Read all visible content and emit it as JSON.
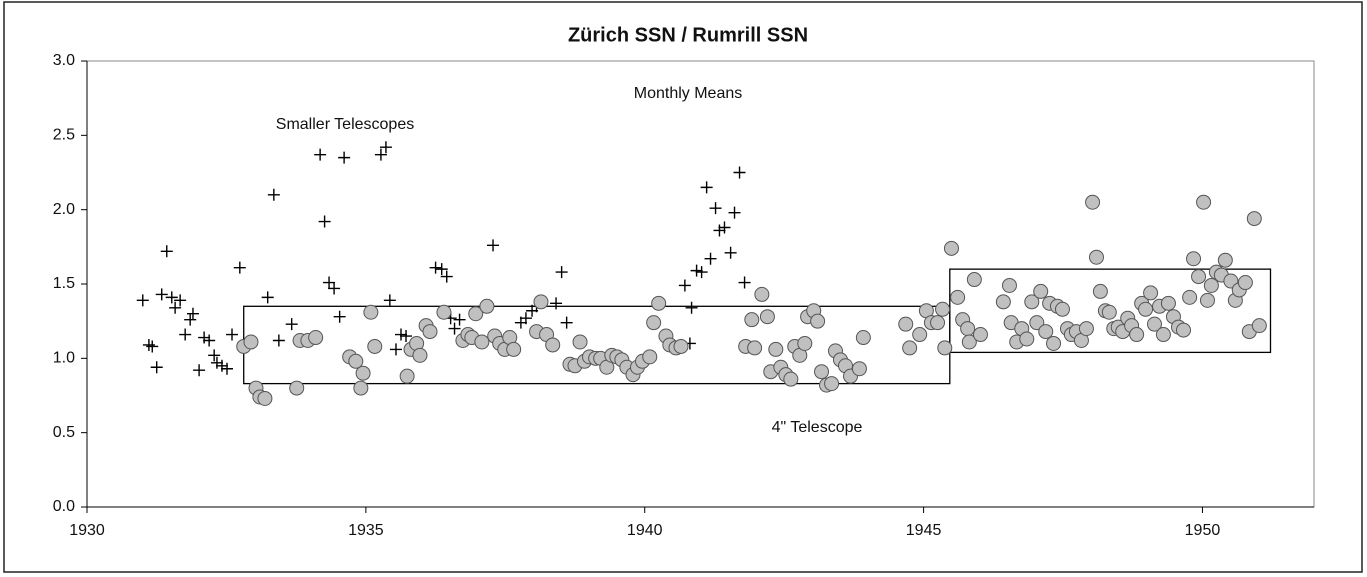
{
  "chart_data": {
    "type": "scatter",
    "title": "Zürich SSN / Rumrill SSN",
    "annotations": [
      "Monthly Means",
      "Smaller Telescopes",
      "4\" Telescope"
    ],
    "xlim": [
      1930,
      1952
    ],
    "xticks": [
      1930,
      1935,
      1940,
      1945,
      1950
    ],
    "ylim": [
      0,
      3
    ],
    "yticks": [
      {
        "value": 0,
        "label": "0.0"
      },
      0.5,
      {
        "value": 1,
        "label": "1.0"
      },
      1.5,
      {
        "value": 2,
        "label": "2.0"
      },
      2.5,
      {
        "value": 3,
        "label": "3.0"
      }
    ],
    "regions": [
      {
        "x": [
          1932.81,
          1945.47
        ],
        "y": [
          0.83,
          1.35
        ]
      },
      {
        "x": [
          1945.47,
          1951.22
        ],
        "y": [
          1.04,
          1.6
        ]
      }
    ],
    "series": [
      {
        "marker": "plus",
        "color": "#000000",
        "x": [
          1931.0,
          1931.11,
          1931.17,
          1931.25,
          1931.34,
          1931.43,
          1931.52,
          1931.58,
          1931.67,
          1931.76,
          1931.85,
          1931.9,
          1932.01,
          1932.1,
          1932.19,
          1932.28,
          1932.33,
          1932.42,
          1932.51,
          1932.6,
          1932.74,
          1933.35,
          1933.24,
          1933.44,
          1933.67,
          1934.18,
          1934.26,
          1934.34,
          1934.43,
          1934.53,
          1934.61,
          1935.27,
          1935.36,
          1935.43,
          1935.54,
          1935.63,
          1935.72,
          1936.25,
          1936.36,
          1936.45,
          1936.52,
          1936.59,
          1936.68,
          1937.28,
          1937.78,
          1937.87,
          1937.98,
          1938.06,
          1938.51,
          1938.6,
          1938.41,
          1940.72,
          1940.81,
          1940.84,
          1940.93,
          1941.02,
          1941.11,
          1941.18,
          1941.27,
          1941.34,
          1941.43,
          1941.54,
          1941.61,
          1941.7,
          1941.79
        ],
        "values": [
          1.39,
          1.09,
          1.08,
          0.94,
          1.43,
          1.72,
          1.41,
          1.34,
          1.39,
          1.16,
          1.26,
          1.3,
          0.92,
          1.14,
          1.12,
          1.02,
          0.97,
          0.95,
          0.93,
          1.16,
          1.61,
          2.1,
          1.41,
          1.12,
          1.23,
          2.37,
          1.92,
          1.51,
          1.47,
          1.28,
          2.35,
          2.37,
          2.42,
          1.39,
          1.06,
          1.16,
          1.15,
          1.61,
          1.6,
          1.55,
          1.27,
          1.2,
          1.26,
          1.76,
          1.24,
          1.27,
          1.32,
          1.35,
          1.58,
          1.24,
          1.37,
          1.49,
          1.1,
          1.34,
          1.59,
          1.58,
          2.15,
          1.67,
          2.01,
          1.86,
          1.88,
          1.71,
          1.98,
          2.25,
          1.51
        ]
      },
      {
        "marker": "circle",
        "color": "#c0c0c0",
        "x": [
          1932.81,
          1932.94,
          1933.03,
          1933.1,
          1933.19,
          1933.76,
          1933.82,
          1933.96,
          1934.1,
          1934.71,
          1934.82,
          1934.95,
          1934.91,
          1935.09,
          1935.16,
          1935.74,
          1935.81,
          1935.91,
          1935.97,
          1936.08,
          1936.15,
          1936.4,
          1936.74,
          1936.83,
          1936.9,
          1936.97,
          1937.08,
          1937.17,
          1937.31,
          1937.4,
          1937.49,
          1937.58,
          1937.65,
          1938.06,
          1938.14,
          1938.24,
          1938.35,
          1938.66,
          1938.75,
          1938.84,
          1938.92,
          1939.01,
          1939.12,
          1939.21,
          1939.32,
          1939.41,
          1939.5,
          1939.59,
          1939.68,
          1939.79,
          1939.87,
          1939.96,
          1940.09,
          1940.16,
          1940.25,
          1940.38,
          1940.45,
          1940.56,
          1940.65,
          1941.81,
          1941.92,
          1941.97,
          1942.1,
          1942.2,
          1942.26,
          1942.35,
          1942.44,
          1942.53,
          1942.62,
          1942.69,
          1942.78,
          1942.87,
          1942.92,
          1943.03,
          1943.1,
          1943.17,
          1943.26,
          1943.35,
          1943.42,
          1943.51,
          1943.6,
          1943.69,
          1943.85,
          1943.92,
          1944.68,
          1944.75,
          1944.93,
          1945.05,
          1945.14,
          1945.25,
          1945.34,
          1945.38,
          1945.5,
          1945.61,
          1945.7,
          1945.79,
          1945.82,
          1945.91,
          1946.02,
          1946.43,
          1946.54,
          1946.57,
          1946.67,
          1946.76,
          1946.85,
          1946.94,
          1947.03,
          1947.1,
          1947.19,
          1947.26,
          1947.33,
          1947.4,
          1947.49,
          1947.58,
          1947.65,
          1947.74,
          1947.83,
          1947.92,
          1948.03,
          1948.1,
          1948.17,
          1948.26,
          1948.33,
          1948.41,
          1948.49,
          1948.57,
          1948.66,
          1948.73,
          1948.82,
          1948.91,
          1948.98,
          1949.07,
          1949.14,
          1949.23,
          1949.3,
          1949.39,
          1949.48,
          1949.57,
          1949.66,
          1949.77,
          1949.84,
          1949.93,
          1950.02,
          1950.09,
          1950.16,
          1950.25,
          1950.34,
          1950.41,
          1950.51,
          1950.59,
          1950.66,
          1950.77,
          1950.84,
          1950.93,
          1951.02
        ],
        "values": [
          1.08,
          1.11,
          0.8,
          0.74,
          0.73,
          0.8,
          1.12,
          1.12,
          1.14,
          1.01,
          0.98,
          0.9,
          0.8,
          1.31,
          1.08,
          0.88,
          1.06,
          1.1,
          1.02,
          1.22,
          1.18,
          1.31,
          1.12,
          1.16,
          1.14,
          1.3,
          1.11,
          1.35,
          1.15,
          1.1,
          1.06,
          1.14,
          1.06,
          1.18,
          1.38,
          1.16,
          1.09,
          0.96,
          0.95,
          1.11,
          0.98,
          1.01,
          1.0,
          1.0,
          0.94,
          1.02,
          1.01,
          0.99,
          0.94,
          0.89,
          0.94,
          0.98,
          1.01,
          1.24,
          1.37,
          1.15,
          1.09,
          1.07,
          1.08,
          1.08,
          1.26,
          1.07,
          1.43,
          1.28,
          0.91,
          1.06,
          0.94,
          0.89,
          0.86,
          1.08,
          1.02,
          1.1,
          1.28,
          1.32,
          1.25,
          0.91,
          0.82,
          0.83,
          1.05,
          0.99,
          0.95,
          0.88,
          0.93,
          1.14,
          1.23,
          1.07,
          1.16,
          1.32,
          1.24,
          1.24,
          1.33,
          1.07,
          1.74,
          1.41,
          1.26,
          1.2,
          1.11,
          1.53,
          1.16,
          1.38,
          1.49,
          1.24,
          1.11,
          1.2,
          1.13,
          1.38,
          1.24,
          1.45,
          1.18,
          1.37,
          1.1,
          1.35,
          1.33,
          1.2,
          1.16,
          1.18,
          1.12,
          1.2,
          2.05,
          1.68,
          1.45,
          1.32,
          1.31,
          1.2,
          1.21,
          1.18,
          1.27,
          1.22,
          1.16,
          1.37,
          1.33,
          1.44,
          1.23,
          1.35,
          1.16,
          1.37,
          1.28,
          1.21,
          1.19,
          1.41,
          1.67,
          1.55,
          2.05,
          1.39,
          1.49,
          1.58,
          1.56,
          1.66,
          1.52,
          1.39,
          1.46,
          1.51,
          1.18,
          1.94,
          1.22
        ]
      }
    ]
  }
}
